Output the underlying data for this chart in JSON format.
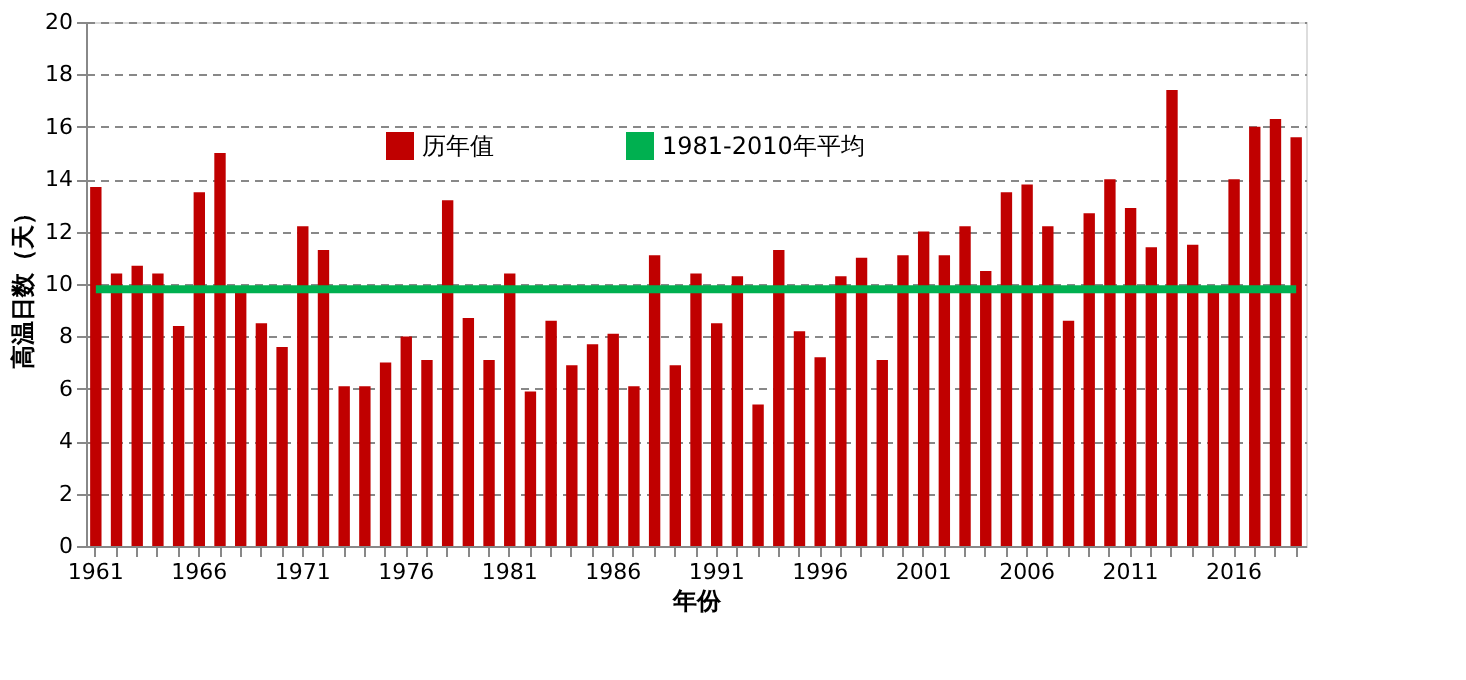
{
  "chart_data": {
    "type": "bar",
    "xlabel": "年份",
    "ylabel": "高温日数（天）",
    "categories": [
      "1961",
      null,
      null,
      null,
      null,
      "1966",
      null,
      null,
      null,
      null,
      "1971",
      null,
      null,
      null,
      null,
      "1976",
      null,
      null,
      null,
      null,
      "1981",
      null,
      null,
      null,
      null,
      "1986",
      null,
      null,
      null,
      null,
      "1991",
      null,
      null,
      null,
      null,
      "1996",
      null,
      null,
      null,
      null,
      "2001",
      null,
      null,
      null,
      null,
      "2006",
      null,
      null,
      null,
      null,
      "2011",
      null,
      null,
      null,
      null,
      "2016",
      null,
      null,
      null
    ],
    "series": [
      {
        "name": "历年值",
        "color": "#c00000",
        "values": [
          13.7,
          10.4,
          10.7,
          10.4,
          8.4,
          13.5,
          15.0,
          9.9,
          8.5,
          7.6,
          12.2,
          11.3,
          6.1,
          6.1,
          7.0,
          8.0,
          7.1,
          13.2,
          8.7,
          7.1,
          10.4,
          5.9,
          8.6,
          6.9,
          7.7,
          8.1,
          6.1,
          11.1,
          6.9,
          10.4,
          8.5,
          10.3,
          5.4,
          11.3,
          8.2,
          7.2,
          10.3,
          11.0,
          7.1,
          11.1,
          12.0,
          11.1,
          12.2,
          10.5,
          13.5,
          13.8,
          12.2,
          8.6,
          12.7,
          14.0,
          12.9,
          11.4,
          17.4,
          11.5,
          9.7,
          14.0,
          16.0,
          16.3,
          15.6
        ]
      },
      {
        "name": "1981-2010年平均",
        "color": "#00b050",
        "type": "line",
        "values": [
          9.8,
          9.8,
          9.8,
          9.8,
          9.8,
          9.8,
          9.8,
          9.8,
          9.8,
          9.8,
          9.8,
          9.8,
          9.8,
          9.8,
          9.8,
          9.8,
          9.8,
          9.8,
          9.8,
          9.8,
          9.8,
          9.8,
          9.8,
          9.8,
          9.8,
          9.8,
          9.8,
          9.8,
          9.8,
          9.8,
          9.8,
          9.8,
          9.8,
          9.8,
          9.8,
          9.8,
          9.8,
          9.8,
          9.8,
          9.8,
          9.8,
          9.8,
          9.8,
          9.8,
          9.8,
          9.8,
          9.8,
          9.8,
          9.8,
          9.8,
          9.8,
          9.8,
          9.8,
          9.8,
          9.8,
          9.8,
          9.8,
          9.8,
          9.8
        ]
      }
    ],
    "ylim": [
      0,
      20
    ],
    "yticks": [
      0,
      2,
      4,
      6,
      8,
      10,
      12,
      14,
      16,
      18,
      20
    ],
    "grid": "y",
    "legend": "top"
  }
}
